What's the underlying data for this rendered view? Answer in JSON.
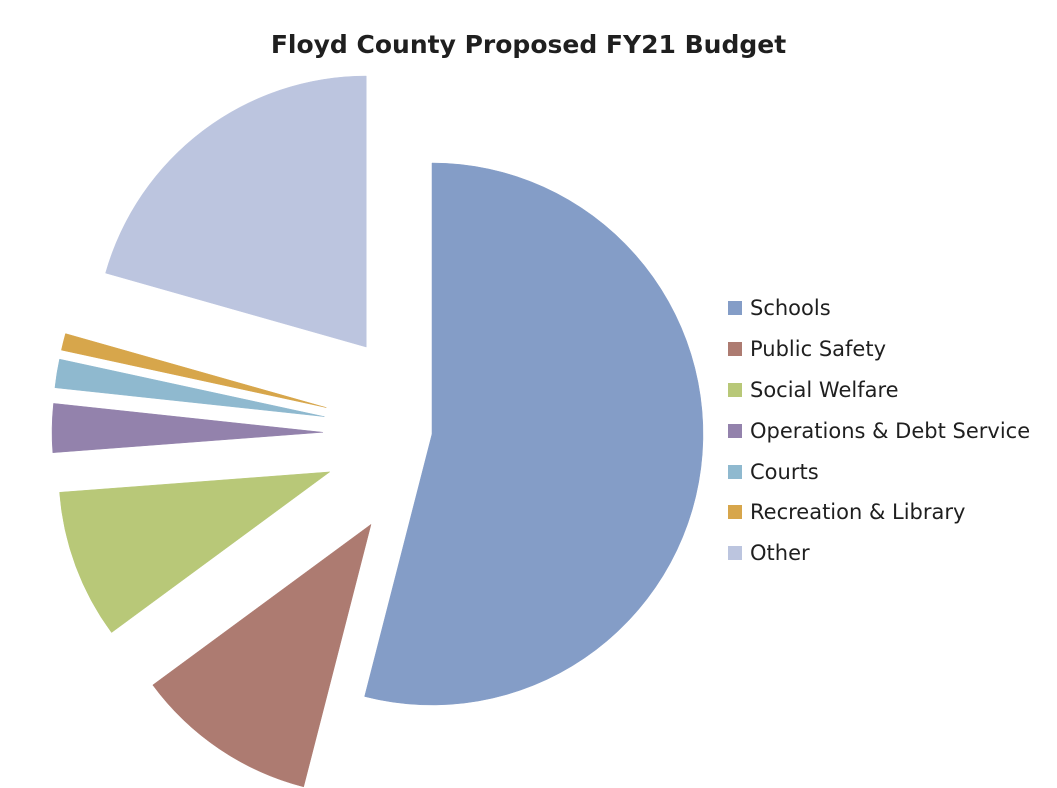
{
  "chart_data": {
    "type": "pie",
    "title": "Floyd County Proposed FY21 Budget",
    "categories": [
      "Schools",
      "Public Safety",
      "Social Welfare",
      "Operations & Debt Service",
      "Courts",
      "Recreation & Library",
      "Other"
    ],
    "values": [
      54.0,
      10.9,
      8.9,
      2.9,
      1.7,
      1.0,
      20.6
    ],
    "unit": "percent",
    "colors": [
      "#849dc7",
      "#ad7b71",
      "#b8c878",
      "#9382ac",
      "#8fb9cf",
      "#d7a64b",
      "#bcc5df"
    ],
    "exploded": true,
    "legend_position": "right"
  }
}
